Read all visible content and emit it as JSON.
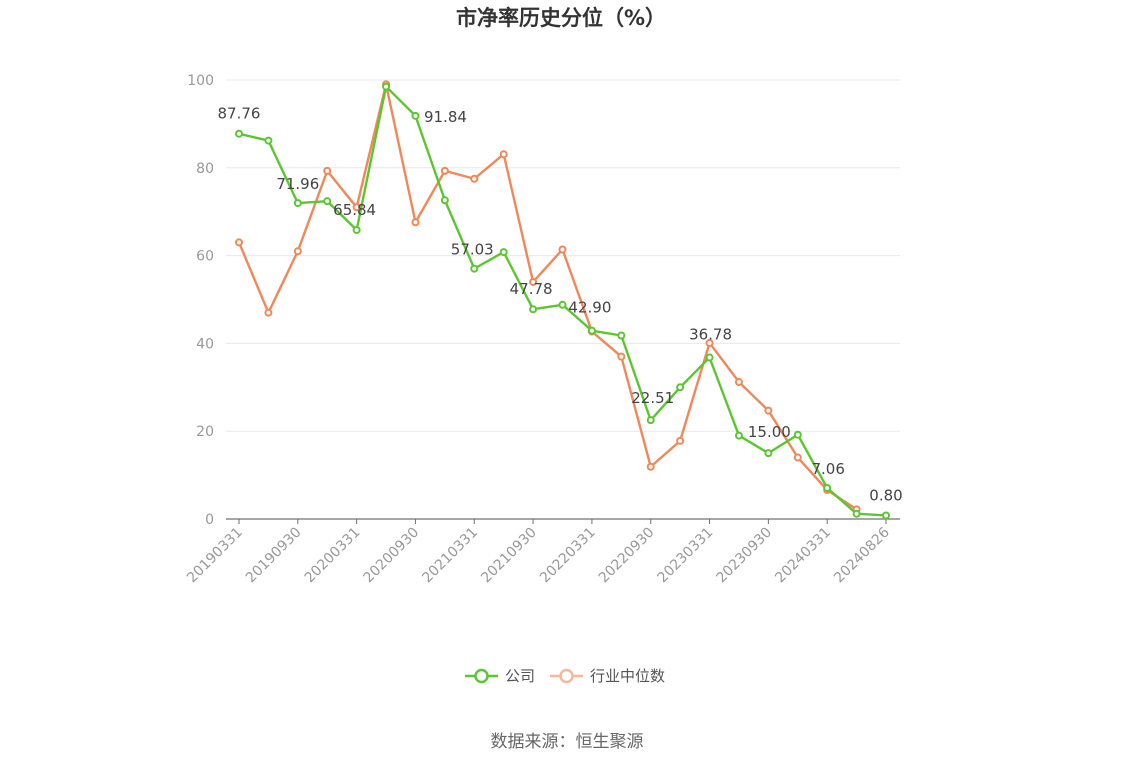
{
  "chart_data": {
    "type": "line",
    "title": "市净率历史分位（%）",
    "source": "数据来源：恒生聚源",
    "ylim": [
      0,
      100
    ],
    "yticks": [
      0,
      20,
      40,
      60,
      80,
      100
    ],
    "x_tick_labels": [
      "20190331",
      "20190930",
      "20200331",
      "20200930",
      "20210331",
      "20210930",
      "20220331",
      "20220930",
      "20230331",
      "20230930",
      "20240331",
      "20240826"
    ],
    "legend_position": "bottom-center",
    "grid": true,
    "series": [
      {
        "name": "公司",
        "color": "#5cc631",
        "values": [
          87.76,
          86.2,
          71.96,
          72.4,
          65.84,
          98.5,
          91.84,
          72.6,
          57.03,
          60.8,
          47.78,
          48.8,
          42.9,
          41.8,
          22.51,
          30.0,
          36.78,
          19.0,
          15.0,
          19.2,
          7.06,
          1.2,
          0.8
        ]
      },
      {
        "name": "行业中位数",
        "color": "#f0885a",
        "values": [
          63.0,
          47.0,
          61.0,
          79.3,
          71.0,
          99.0,
          67.6,
          79.3,
          77.5,
          83.1,
          54.0,
          61.4,
          42.7,
          37.0,
          11.9,
          17.8,
          40.1,
          31.2,
          24.7,
          14.0,
          6.6,
          2.2,
          null
        ]
      }
    ],
    "data_labels": [
      {
        "series": 0,
        "index": 0,
        "text": "87.76"
      },
      {
        "series": 0,
        "index": 2,
        "text": "71.96"
      },
      {
        "series": 0,
        "index": 4,
        "text": "65.84"
      },
      {
        "series": 0,
        "index": 6,
        "text": "91.84"
      },
      {
        "series": 0,
        "index": 8,
        "text": "57.03"
      },
      {
        "series": 0,
        "index": 10,
        "text": "47.78"
      },
      {
        "series": 0,
        "index": 12,
        "text": "42.90"
      },
      {
        "series": 0,
        "index": 14,
        "text": "22.51"
      },
      {
        "series": 0,
        "index": 16,
        "text": "36.78"
      },
      {
        "series": 0,
        "index": 18,
        "text": "15.00"
      },
      {
        "series": 0,
        "index": 20,
        "text": "7.06"
      },
      {
        "series": 0,
        "index": 22,
        "text": "0.80"
      }
    ]
  }
}
